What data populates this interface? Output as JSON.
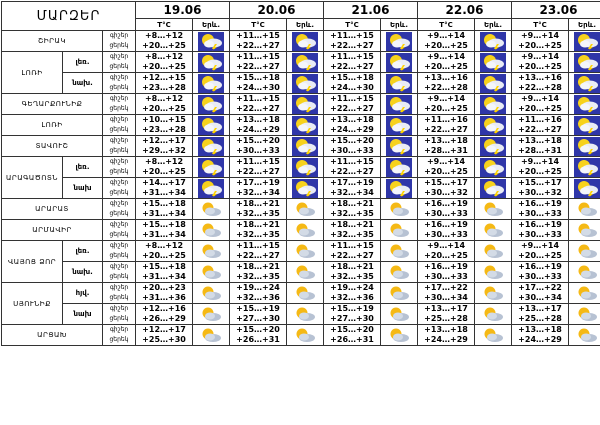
{
  "header": {
    "title": "ՄԱՐԶԵՐ",
    "temp_label": "T°C",
    "icon_label": "Երև.",
    "dates": [
      "19.06",
      "20.06",
      "21.06",
      "22.06",
      "23.06"
    ]
  },
  "time_labels": {
    "day": "ցերեկ",
    "night": "գիշեր"
  },
  "regions": [
    {
      "name": "ՇԻՐԱԿ",
      "rows": [
        {
          "sub": "",
          "icon": "storm",
          "t": [
            [
              "+8…+12",
              "+20…+25"
            ],
            [
              "+11…+15",
              "+22…+27"
            ],
            [
              "+11…+15",
              "+22…+27"
            ],
            [
              "+9…+14",
              "+20…+25"
            ],
            [
              "+9…+14",
              "+20…+25"
            ]
          ]
        }
      ]
    },
    {
      "name": "ԼՈՌԻ",
      "rows": [
        {
          "sub": "լեռ.",
          "icon": "storm",
          "t": [
            [
              "+8…+12",
              "+20…+25"
            ],
            [
              "+11…+15",
              "+22…+27"
            ],
            [
              "+11…+15",
              "+22…+27"
            ],
            [
              "+9…+14",
              "+20…+25"
            ],
            [
              "+9…+14",
              "+20…+25"
            ]
          ]
        },
        {
          "sub": "նախ.",
          "icon": "storm",
          "t": [
            [
              "+12…+15",
              "+23…+28"
            ],
            [
              "+15…+18",
              "+24…+30"
            ],
            [
              "+15…+18",
              "+24…+30"
            ],
            [
              "+13…+16",
              "+22…+28"
            ],
            [
              "+13…+16",
              "+22…+28"
            ]
          ]
        }
      ]
    },
    {
      "name": "ԳԵՂԱՐՔՈՒՆԻՔ",
      "rows": [
        {
          "sub": "",
          "icon": "storm",
          "t": [
            [
              "+8…+12",
              "+20…+25"
            ],
            [
              "+11…+15",
              "+22…+27"
            ],
            [
              "+11…+15",
              "+22…+27"
            ],
            [
              "+9…+14",
              "+20…+25"
            ],
            [
              "+9…+14",
              "+20…+25"
            ]
          ]
        }
      ]
    },
    {
      "name": "ԼՈՌԻ",
      "rows": [
        {
          "sub": "",
          "icon": "storm",
          "t": [
            [
              "+10…+15",
              "+23…+28"
            ],
            [
              "+13…+18",
              "+24…+29"
            ],
            [
              "+13…+18",
              "+24…+29"
            ],
            [
              "+11…+16",
              "+22…+27"
            ],
            [
              "+11…+16",
              "+22…+27"
            ]
          ]
        }
      ]
    },
    {
      "name": "ՏԱՎՈՒՇ",
      "rows": [
        {
          "sub": "",
          "icon": "storm",
          "t": [
            [
              "+12…+17",
              "+29…+32"
            ],
            [
              "+15…+20",
              "+30…+33"
            ],
            [
              "+15…+20",
              "+30…+33"
            ],
            [
              "+13…+18",
              "+28…+31"
            ],
            [
              "+13…+18",
              "+28…+31"
            ]
          ]
        }
      ]
    },
    {
      "name": "ԱՐԱԳԱԾՈՏՆ",
      "rows": [
        {
          "sub": "լեռ.",
          "icon": "storm",
          "t": [
            [
              "+8…+12",
              "+20…+25"
            ],
            [
              "+11…+15",
              "+22…+27"
            ],
            [
              "+11…+15",
              "+22…+27"
            ],
            [
              "+9…+14",
              "+20…+25"
            ],
            [
              "+9…+14",
              "+20…+25"
            ]
          ]
        },
        {
          "sub": "նախ",
          "icon": "storm",
          "t": [
            [
              "+14…+17",
              "+31…+34"
            ],
            [
              "+17…+19",
              "+32…+34"
            ],
            [
              "+17…+19",
              "+32…+34"
            ],
            [
              "+15…+17",
              "+30…+32"
            ],
            [
              "+15…+17",
              "+30…+32"
            ]
          ]
        }
      ]
    },
    {
      "name": "ԱՐԱՐԱՏ",
      "rows": [
        {
          "sub": "",
          "icon": "cloudy",
          "t": [
            [
              "+15…+18",
              "+31…+34"
            ],
            [
              "+18…+21",
              "+32…+35"
            ],
            [
              "+18…+21",
              "+32…+35"
            ],
            [
              "+16…+19",
              "+30…+33"
            ],
            [
              "+16…+19",
              "+30…+33"
            ]
          ]
        }
      ]
    },
    {
      "name": "ԱՐՄԱՎԻՐ",
      "rows": [
        {
          "sub": "",
          "icon": "cloudy",
          "t": [
            [
              "+15…+18",
              "+31…+34"
            ],
            [
              "+18…+21",
              "+32…+35"
            ],
            [
              "+18…+21",
              "+32…+35"
            ],
            [
              "+16…+19",
              "+30…+33"
            ],
            [
              "+16…+19",
              "+30…+33"
            ]
          ]
        }
      ]
    },
    {
      "name": "ՎԱՅՈՑ ՁՈՐ",
      "rows": [
        {
          "sub": "լեռ.",
          "icon": "cloudy",
          "t": [
            [
              "+8…+12",
              "+20…+25"
            ],
            [
              "+11…+15",
              "+22…+27"
            ],
            [
              "+11…+15",
              "+22…+27"
            ],
            [
              "+9…+14",
              "+20…+25"
            ],
            [
              "+9…+14",
              "+20…+25"
            ]
          ]
        },
        {
          "sub": "նախ.",
          "icon": "cloudy",
          "t": [
            [
              "+15…+18",
              "+31…+34"
            ],
            [
              "+18…+21",
              "+32…+35"
            ],
            [
              "+18…+21",
              "+32…+35"
            ],
            [
              "+16…+19",
              "+30…+33"
            ],
            [
              "+16…+19",
              "+30…+33"
            ]
          ]
        }
      ]
    },
    {
      "name": "ՍՅՈՒՆԻՔ",
      "rows": [
        {
          "sub": "հյվ.",
          "icon": "cloudy",
          "t": [
            [
              "+20…+23",
              "+31…+36"
            ],
            [
              "+19…+24",
              "+32…+36"
            ],
            [
              "+19…+24",
              "+32…+36"
            ],
            [
              "+17…+22",
              "+30…+34"
            ],
            [
              "+17…+22",
              "+30…+34"
            ]
          ]
        },
        {
          "sub": "նախ",
          "icon": "cloudy",
          "t": [
            [
              "+12…+16",
              "+26…+29"
            ],
            [
              "+15…+19",
              "+27…+30"
            ],
            [
              "+15…+19",
              "+27…+30"
            ],
            [
              "+13…+17",
              "+25…+28"
            ],
            [
              "+13…+17",
              "+25…+28"
            ]
          ]
        }
      ]
    },
    {
      "name": "ԱՐՑԱԽ",
      "rows": [
        {
          "sub": "",
          "icon": "cloudy",
          "t": [
            [
              "+12…+17",
              "+25…+30"
            ],
            [
              "+15…+20",
              "+26…+31"
            ],
            [
              "+15…+20",
              "+26…+31"
            ],
            [
              "+13…+18",
              "+24…+29"
            ],
            [
              "+13…+18",
              "+24…+29"
            ]
          ]
        }
      ]
    }
  ]
}
